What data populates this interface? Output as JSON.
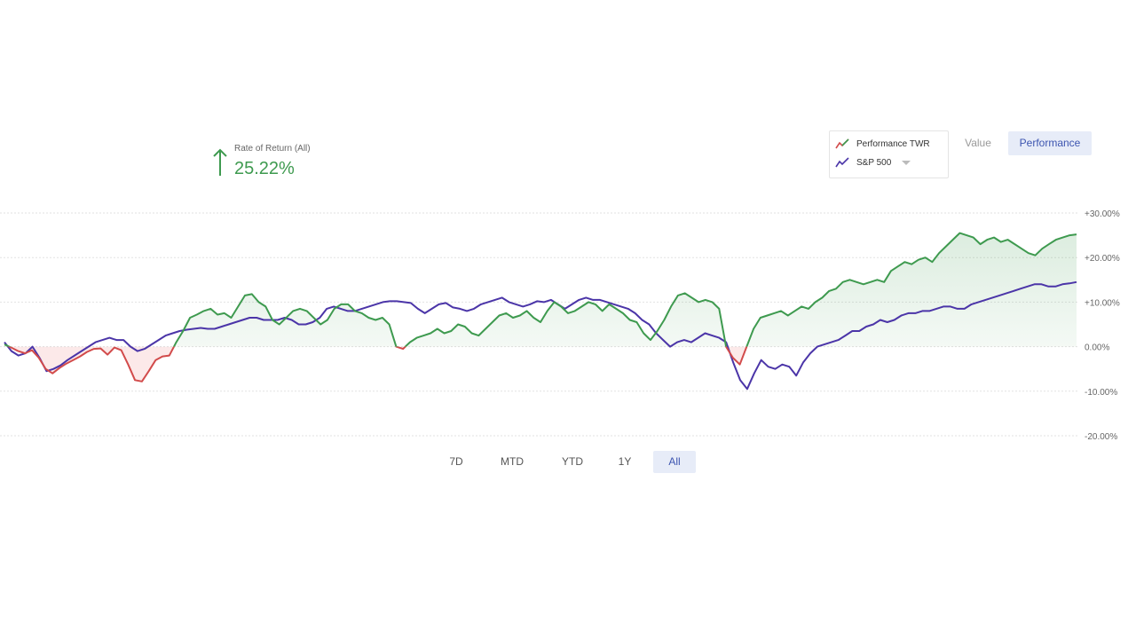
{
  "summary": {
    "label": "Rate of Return (All)",
    "value": "25.22%",
    "direction": "up"
  },
  "legend": {
    "items": [
      {
        "name": "Performance TWR",
        "color": "#3e9a4f",
        "negative_color": "#d24b4b"
      },
      {
        "name": "S&P 500",
        "color": "#4b35a8",
        "has_dropdown": true
      }
    ]
  },
  "view_toggle": {
    "options": [
      "Value",
      "Performance"
    ],
    "selected": "Performance"
  },
  "range_tabs": {
    "options": [
      "7D",
      "MTD",
      "YTD",
      "1Y",
      "All"
    ],
    "selected": "All"
  },
  "chart_data": {
    "type": "line",
    "y_tick_labels": [
      "+30.00%",
      "+20.00%",
      "+10.00%",
      "0.00%",
      "-10.00%",
      "-20.00%"
    ],
    "ylim": [
      -20,
      30
    ],
    "y_ticks": [
      30,
      20,
      10,
      0,
      -10,
      -20
    ],
    "grid": true,
    "gridline_style": "dotted",
    "series": [
      {
        "name": "Performance TWR",
        "fill": "positive-green-negative-red",
        "values": [
          0.5,
          -0.2,
          -1,
          -1.5,
          -0.8,
          -2.5,
          -5,
          -6,
          -4.8,
          -3.8,
          -3,
          -2.2,
          -1.2,
          -0.5,
          -0.4,
          -1.8,
          -0.2,
          -0.8,
          -4,
          -7.5,
          -7.8,
          -5.5,
          -3,
          -2.2,
          -2,
          1,
          3.5,
          6.5,
          7.2,
          8,
          8.5,
          7.2,
          7.5,
          6.5,
          9,
          11.5,
          11.8,
          10,
          9,
          6,
          5,
          6.5,
          8,
          8.5,
          8,
          6.5,
          5,
          6,
          8.5,
          9.5,
          9.5,
          8,
          7.5,
          6.5,
          6,
          6.5,
          5,
          0,
          -0.5,
          1,
          2,
          2.5,
          3,
          4,
          3,
          3.5,
          5,
          4.5,
          3,
          2.5,
          4,
          5.5,
          7,
          7.5,
          6.5,
          7,
          8,
          6.5,
          5.5,
          8,
          10,
          9,
          7.5,
          8,
          9,
          10,
          9.5,
          8,
          9.5,
          8.5,
          7.5,
          6,
          5.5,
          3,
          1.5,
          3.5,
          6,
          9,
          11.5,
          12,
          11,
          10,
          10.5,
          10,
          8.5,
          0,
          -2.5,
          -4,
          0,
          4,
          6.5,
          7,
          7.5,
          8,
          7,
          8,
          9,
          8.5,
          10,
          11,
          12.5,
          13,
          14.5,
          15,
          14.5,
          14,
          14.5,
          15,
          14.5,
          17,
          18,
          19,
          18.5,
          19.5,
          20,
          19,
          21,
          22.5,
          24,
          25.5,
          25,
          24.5,
          23,
          24,
          24.5,
          23.5,
          24,
          23,
          22,
          21,
          20.5,
          22,
          23,
          24,
          24.5,
          25,
          25.2
        ]
      },
      {
        "name": "S&P 500",
        "values": [
          1,
          -1,
          -2,
          -1.5,
          0,
          -2.5,
          -5.5,
          -5,
          -4.2,
          -3,
          -2,
          -1,
          0,
          1,
          1.5,
          2,
          1.5,
          1.5,
          0,
          -1,
          -0.5,
          0.5,
          1.5,
          2.5,
          3,
          3.5,
          3.8,
          4,
          4.2,
          4,
          4,
          4.5,
          5,
          5.5,
          6,
          6.5,
          6.5,
          6,
          6,
          6,
          6.5,
          6,
          5,
          5,
          5.5,
          6.5,
          8.5,
          9,
          8.5,
          8,
          8,
          8.5,
          9,
          9.5,
          10,
          10.2,
          10.2,
          10,
          9.8,
          8.5,
          7.5,
          8.5,
          9.5,
          9.8,
          8.8,
          8.5,
          8,
          8.5,
          9.5,
          10,
          10.5,
          11,
          10,
          9.5,
          9,
          9.5,
          10.2,
          10,
          10.5,
          9.5,
          8.5,
          9.5,
          10.5,
          11,
          10.5,
          10.5,
          10,
          9.5,
          9,
          8.5,
          7.5,
          6,
          5,
          3,
          1.5,
          0,
          1,
          1.5,
          1,
          2,
          3,
          2.5,
          2,
          1,
          -3.5,
          -7.5,
          -9.5,
          -6,
          -3,
          -4.5,
          -5,
          -4,
          -4.5,
          -6.5,
          -3.5,
          -1.5,
          0,
          0.5,
          1,
          1.5,
          2.5,
          3.5,
          3.5,
          4.5,
          5,
          6,
          5.5,
          6,
          7,
          7.5,
          7.5,
          8,
          8,
          8.5,
          9,
          9,
          8.5,
          8.5,
          9.5,
          10,
          10.5,
          11,
          11.5,
          12,
          12.5,
          13,
          13.5,
          14,
          14,
          13.5,
          13.5,
          14,
          14.2,
          14.5
        ]
      }
    ]
  }
}
